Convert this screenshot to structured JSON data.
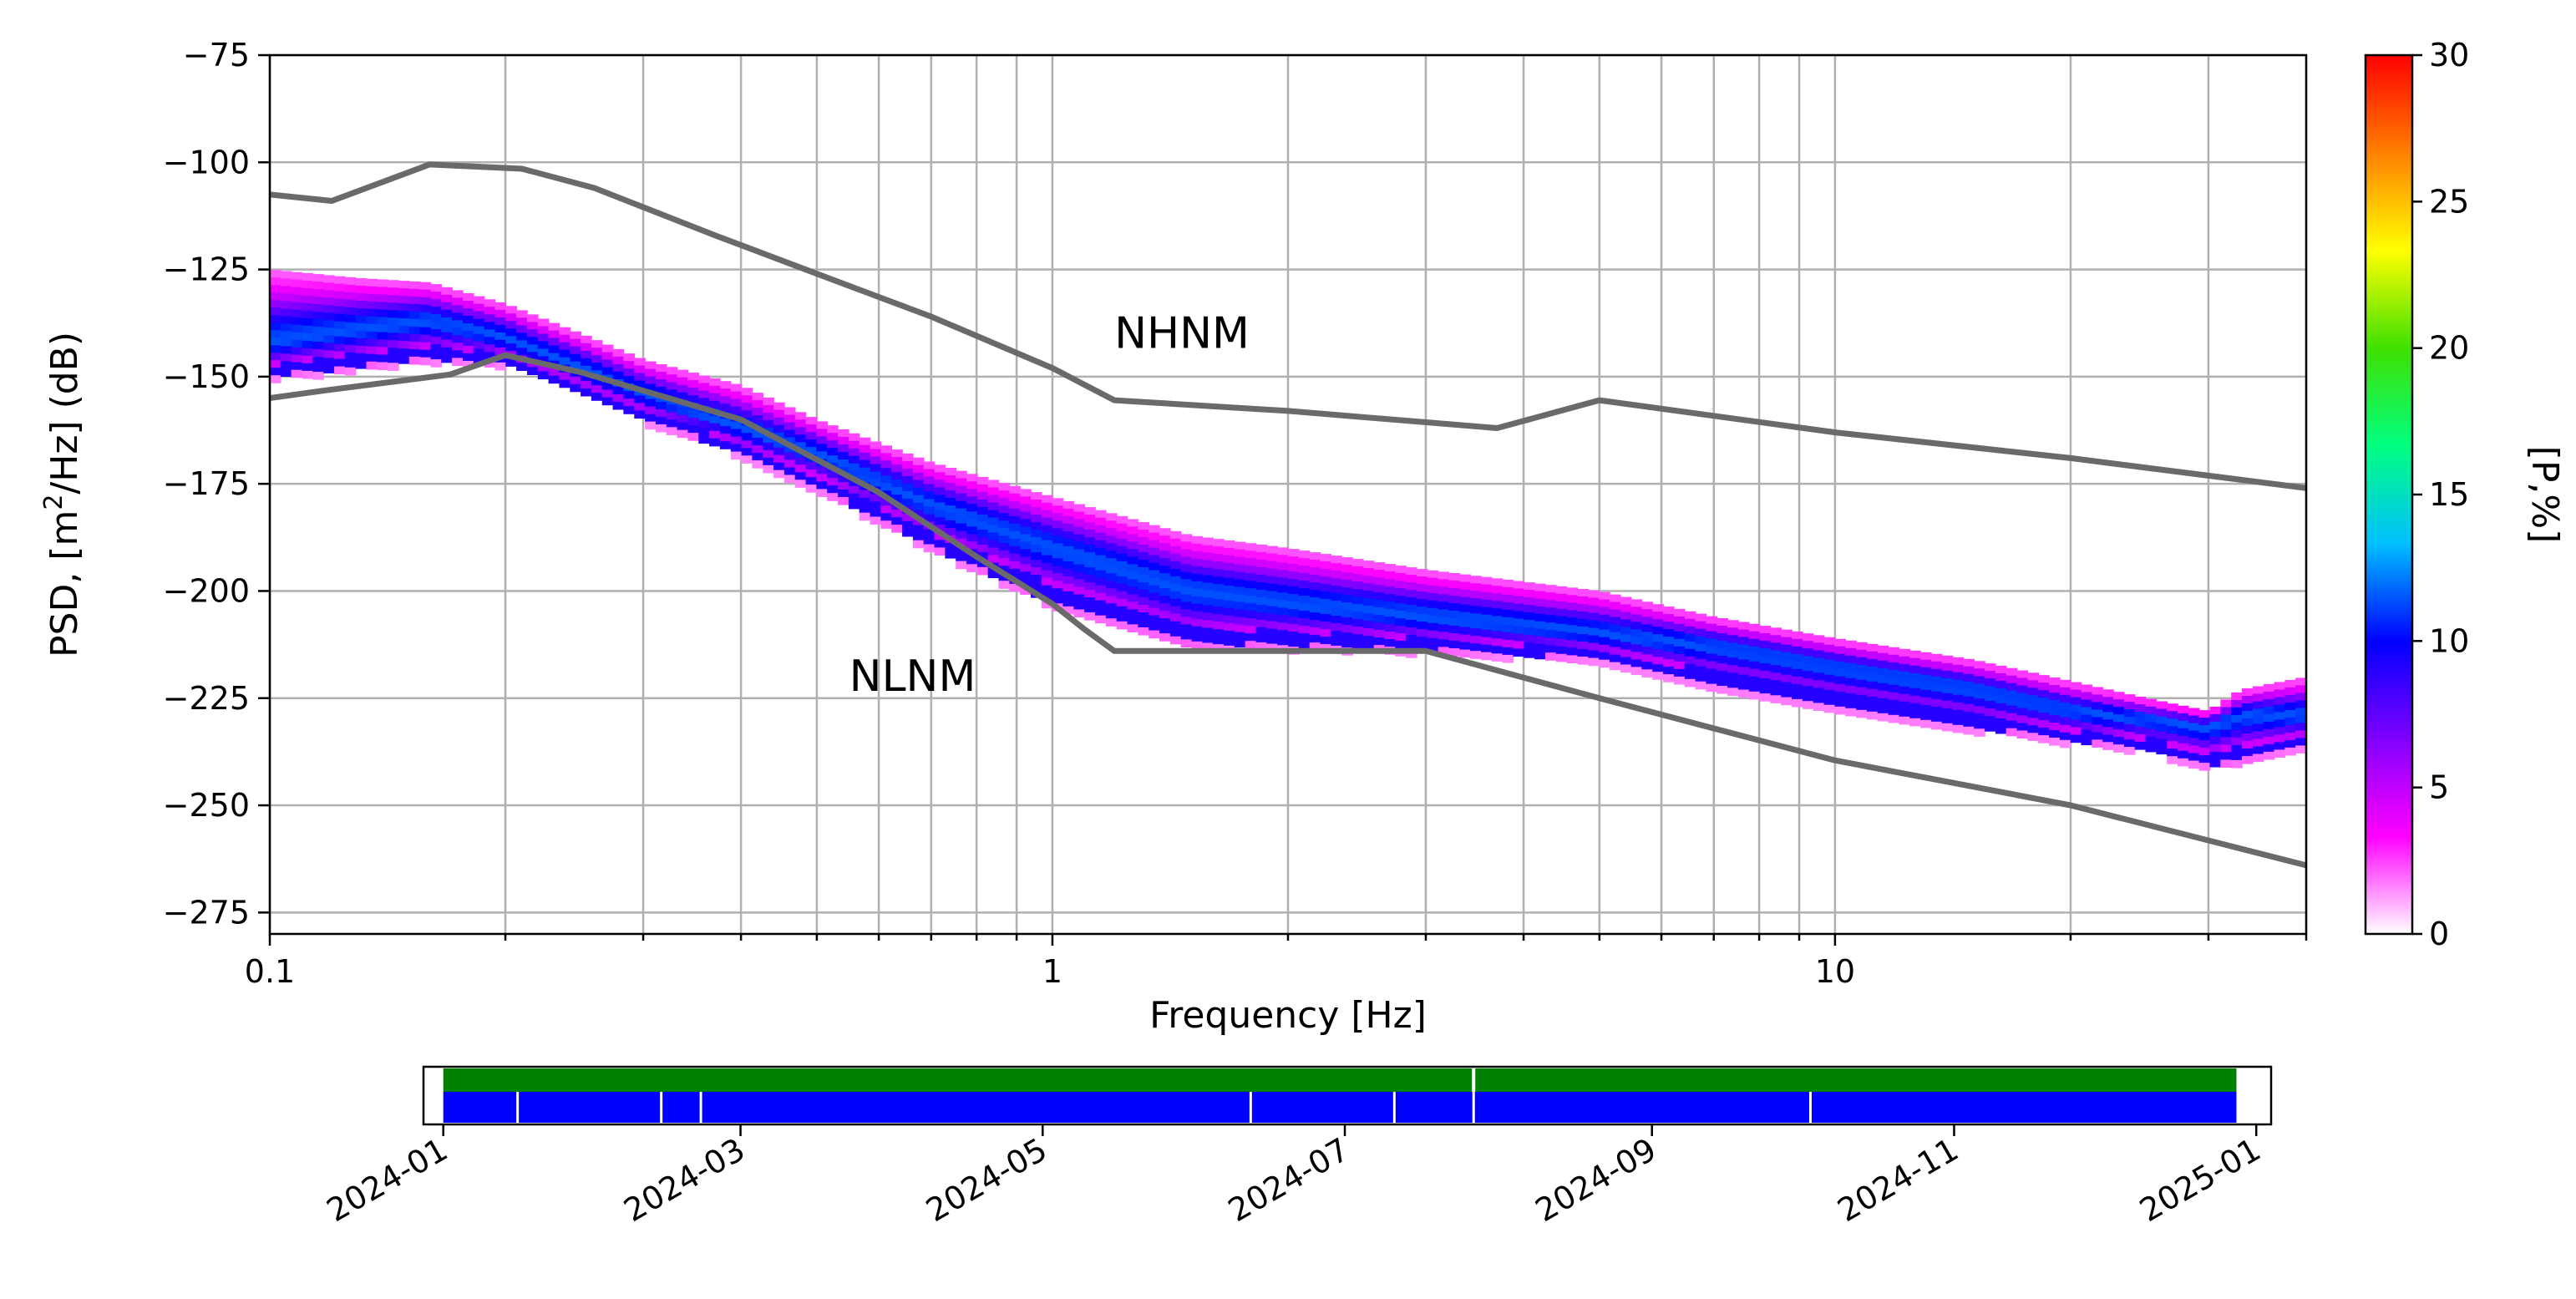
{
  "chart_data": [
    {
      "type": "heatmap",
      "title": "",
      "xlabel": "Frequency [Hz]",
      "ylabel_parts": [
        "PSD, [m",
        "2",
        "/Hz] (dB)"
      ],
      "xscale": "log",
      "xlim": [
        0.1,
        40
      ],
      "ylim": [
        -280,
        -75
      ],
      "x_ticks": [
        0.1,
        1,
        10
      ],
      "x_tick_labels": [
        "0.1",
        "1",
        "10"
      ],
      "y_ticks": [
        -75,
        -100,
        -125,
        -150,
        -175,
        -200,
        -225,
        -250,
        -275
      ],
      "y_tick_labels": [
        "−75",
        "−100",
        "−125",
        "−150",
        "−175",
        "−200",
        "−225",
        "−250",
        "−275"
      ],
      "grid": true,
      "colorbar": {
        "label": "[P,%]",
        "min": 0,
        "max": 30,
        "ticks": [
          0,
          5,
          10,
          15,
          20,
          25,
          30
        ],
        "tick_labels": [
          "0",
          "5",
          "10",
          "15",
          "20",
          "25",
          "30"
        ],
        "colormap": "pqlx",
        "color_stops": [
          "#ffffff",
          "#ff00ff",
          "#8000ff",
          "#0000ff",
          "#00c0ff",
          "#00ff80",
          "#40e000",
          "#ffff00",
          "#ff8000",
          "#ff0000"
        ]
      },
      "series": [
        {
          "name": "NHNM",
          "color": "#6a6a6a",
          "x": [
            0.1,
            0.12,
            0.16,
            0.21,
            0.26,
            0.37,
            0.5,
            0.7,
            1.0,
            1.2,
            2.0,
            3.7,
            5.0,
            10.0,
            20.0,
            40.0
          ],
          "y": [
            -107.5,
            -109,
            -100.5,
            -101.5,
            -106,
            -117,
            -126,
            -136,
            -148,
            -155.5,
            -158,
            -162,
            -155.5,
            -163,
            -169,
            -176
          ]
        },
        {
          "name": "NLNM",
          "color": "#6a6a6a",
          "x": [
            0.1,
            0.12,
            0.17,
            0.2,
            0.25,
            0.4,
            0.6,
            0.8,
            1.0,
            1.1,
            1.2,
            2.0,
            3.0,
            5.0,
            10.0,
            20.0,
            40.0
          ],
          "y": [
            -155,
            -153,
            -149.5,
            -145,
            -149,
            -160,
            -177,
            -192,
            -203,
            -209,
            -214,
            -214,
            -214,
            -225,
            -239.5,
            -250,
            -264
          ]
        }
      ],
      "density_band": {
        "description": "Probability density of PSD estimates",
        "freq": [
          0.1,
          0.13,
          0.16,
          0.2,
          0.25,
          0.3,
          0.4,
          0.5,
          0.7,
          1.0,
          1.5,
          2.0,
          3.0,
          5.0,
          7.0,
          10.0,
          15.0,
          20.0,
          25.0,
          30.0,
          33.0,
          40.0
        ],
        "median": [
          -142,
          -139,
          -137,
          -141,
          -148,
          -154,
          -162,
          -168,
          -180,
          -190,
          -200,
          -203,
          -206,
          -210,
          -213,
          -218,
          -223,
          -228,
          -230,
          -232,
          -229,
          -229
        ],
        "low": [
          -150,
          -148,
          -146,
          -147,
          -154,
          -160,
          -168,
          -176,
          -190,
          -203,
          -213,
          -213,
          -214,
          -216,
          -222,
          -227,
          -232,
          -235,
          -237,
          -241,
          -240,
          -236
        ],
        "high": [
          -125,
          -127,
          -128,
          -133,
          -140,
          -146,
          -152,
          -160,
          -170,
          -178,
          -187,
          -190,
          -195,
          -200,
          -206,
          -211,
          -216,
          -221,
          -225,
          -228,
          -223,
          -220
        ]
      },
      "annotations": [
        {
          "text": "NHNM",
          "x": 1.2,
          "y": -140
        },
        {
          "text": "NLNM",
          "x": 0.55,
          "y": -220
        }
      ]
    },
    {
      "type": "timeline",
      "xlim": [
        "2023-12-28",
        "2025-01-04"
      ],
      "x_ticks": [
        "2024-01-01",
        "2024-03-01",
        "2024-05-01",
        "2024-07-01",
        "2024-09-01",
        "2024-11-01",
        "2025-01-01"
      ],
      "x_tick_labels": [
        "2024-01",
        "2024-03",
        "2024-05",
        "2024-07",
        "2024-09",
        "2024-11",
        "2025-01"
      ],
      "data_coverage": {
        "start": "2024-01-01",
        "end": "2024-12-28",
        "color": "#008000"
      },
      "psd_coverage": {
        "start": "2024-01-01",
        "end": "2024-12-28",
        "color": "#0000ff",
        "gaps": [
          "2024-01-16",
          "2024-02-14",
          "2024-02-22",
          "2024-06-12",
          "2024-07-11",
          "2024-07-27",
          "2024-10-03"
        ]
      },
      "data_gaps": [
        "2024-07-27"
      ]
    }
  ]
}
